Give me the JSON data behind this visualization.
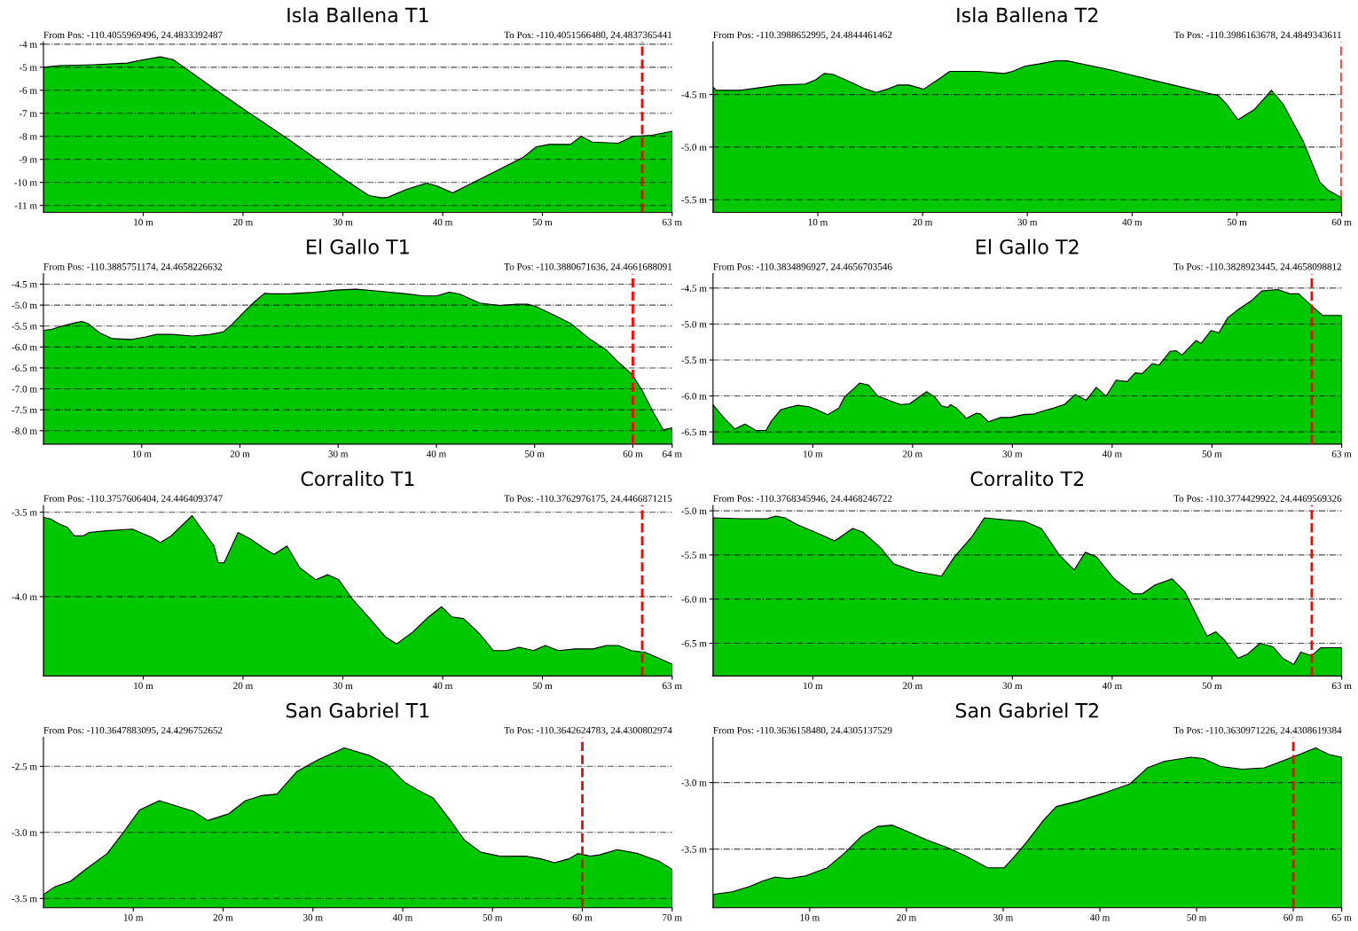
{
  "chart_data": [
    {
      "type": "area",
      "title": "Isla Ballena T1",
      "grid": "y",
      "annotations": [
        "From Pos: -110.4055969496, 24.4833392487",
        "To Pos: -110.4051566480, 24.4837365441"
      ],
      "x": [
        0,
        1.55,
        5,
        8.4,
        9.7,
        11.7,
        13,
        17.1,
        20.5,
        24.8,
        30,
        32.6,
        33.9,
        34.5,
        36.4,
        38.4,
        39.5,
        41,
        43.8,
        48.1,
        49.4,
        50.7,
        52.8,
        53.9,
        55,
        57.6,
        59.1,
        61,
        63
      ],
      "series": [
        {
          "color": "#00c800",
          "values": [
            -5.0,
            -4.93,
            -4.89,
            -4.82,
            -4.7,
            -4.55,
            -4.67,
            -5.93,
            -6.95,
            -8.2,
            -9.82,
            -10.57,
            -10.67,
            -10.65,
            -10.3,
            -10.03,
            -10.17,
            -10.45,
            -9.85,
            -8.9,
            -8.45,
            -8.35,
            -8.35,
            -8.0,
            -8.25,
            -8.3,
            -8.0,
            -7.95,
            -7.78
          ]
        }
      ],
      "xlim": [
        0,
        63
      ],
      "xticks": [
        {
          "value": 10,
          "label": "10 m"
        },
        {
          "value": 20,
          "label": "20 m"
        },
        {
          "value": 30,
          "label": "30 m"
        },
        {
          "value": 40,
          "label": "40 m"
        },
        {
          "value": 50,
          "label": "50 m"
        },
        {
          "value": 63,
          "label": "63 m"
        }
      ],
      "ylim": [
        -11.3,
        -3.9
      ],
      "yticks": [
        {
          "value": -4,
          "label": "-4 m"
        },
        {
          "value": -5,
          "label": "-5 m"
        },
        {
          "value": -6,
          "label": "-6 m"
        },
        {
          "value": -7,
          "label": "-7 m"
        },
        {
          "value": -8,
          "label": "-8 m"
        },
        {
          "value": -9,
          "label": "-9 m"
        },
        {
          "value": -10,
          "label": "-10 m"
        },
        {
          "value": -11,
          "label": "-11 m"
        }
      ],
      "ref_lines": [
        {
          "axis": "x",
          "value": 60,
          "color": "#ff0000",
          "line_style": "dashed"
        }
      ]
    },
    {
      "type": "area",
      "title": "Isla Ballena T2",
      "grid": "y",
      "annotations": [
        "From Pos: -110.3988652995, 24.4844461462",
        "To Pos: -110.3986163678, 24.4849343611"
      ],
      "x": [
        0,
        0.3,
        2.6,
        6.3,
        8.8,
        9.8,
        10.6,
        11.5,
        13.3,
        14.6,
        15.6,
        16.6,
        17.6,
        18.7,
        20.1,
        21.6,
        22.6,
        25.3,
        27.8,
        28.6,
        29.8,
        31.1,
        32.7,
        33.8,
        38.1,
        42.2,
        48.2,
        49,
        50.1,
        51.7,
        53.3,
        54.4,
        56.3,
        57.9,
        58.7,
        59.8,
        60
      ],
      "series": [
        {
          "color": "#00c800",
          "values": [
            -4.43,
            -4.46,
            -4.46,
            -4.41,
            -4.4,
            -4.36,
            -4.3,
            -4.31,
            -4.39,
            -4.45,
            -4.48,
            -4.45,
            -4.41,
            -4.41,
            -4.45,
            -4.35,
            -4.28,
            -4.28,
            -4.3,
            -4.28,
            -4.23,
            -4.21,
            -4.18,
            -4.18,
            -4.27,
            -4.37,
            -4.51,
            -4.59,
            -4.74,
            -4.64,
            -4.46,
            -4.59,
            -4.94,
            -5.33,
            -5.41,
            -5.47,
            -5.48
          ]
        }
      ],
      "xlim": [
        0,
        60
      ],
      "xticks": [
        {
          "value": 10,
          "label": "10 m"
        },
        {
          "value": 20,
          "label": "20 m"
        },
        {
          "value": 30,
          "label": "30 m"
        },
        {
          "value": 40,
          "label": "40 m"
        },
        {
          "value": 50,
          "label": "50 m"
        },
        {
          "value": 60,
          "label": "60 m"
        }
      ],
      "ylim": [
        -5.62,
        -4.0
      ],
      "yticks": [
        {
          "value": -4.5,
          "label": "-4.5 m"
        },
        {
          "value": -5.0,
          "label": "-5.0 m"
        },
        {
          "value": -5.5,
          "label": "-5.5 m"
        }
      ],
      "ref_lines": [
        {
          "axis": "x",
          "value": 60,
          "color": "#ff0000",
          "line_style": "dashed"
        }
      ]
    },
    {
      "type": "area",
      "title": "El Gallo T1",
      "grid": "y",
      "annotations": [
        "From Pos: -110.3885751174, 24.4658226632",
        "To Pos: -110.3880671636, 24.4661688091"
      ],
      "x": [
        0,
        0.8,
        1.9,
        3.1,
        3.9,
        4.6,
        5.7,
        7,
        9,
        10.4,
        11.5,
        13,
        15.2,
        17,
        18.3,
        19.2,
        20.3,
        21.4,
        22.5,
        23.2,
        25,
        27.2,
        29.8,
        31.8,
        33.8,
        36.9,
        38.7,
        40,
        41.3,
        42.4,
        44.4,
        46.4,
        48.2,
        49.3,
        50.2,
        52,
        53.7,
        55.5,
        57.3,
        58.6,
        59.9,
        61,
        62.1,
        63.1,
        64
      ],
      "series": [
        {
          "color": "#00c800",
          "values": [
            -5.6,
            -5.58,
            -5.5,
            -5.43,
            -5.39,
            -5.45,
            -5.66,
            -5.8,
            -5.82,
            -5.76,
            -5.7,
            -5.7,
            -5.74,
            -5.7,
            -5.64,
            -5.46,
            -5.19,
            -4.94,
            -4.72,
            -4.73,
            -4.73,
            -4.7,
            -4.64,
            -4.62,
            -4.66,
            -4.73,
            -4.78,
            -4.78,
            -4.69,
            -4.74,
            -4.95,
            -5.01,
            -4.98,
            -4.98,
            -5.04,
            -5.24,
            -5.44,
            -5.79,
            -6.07,
            -6.38,
            -6.65,
            -7.06,
            -7.57,
            -7.98,
            -7.93
          ]
        }
      ],
      "xlim": [
        0,
        64
      ],
      "xticks": [
        {
          "value": 10,
          "label": "10 m"
        },
        {
          "value": 20,
          "label": "20 m"
        },
        {
          "value": 30,
          "label": "30 m"
        },
        {
          "value": 40,
          "label": "40 m"
        },
        {
          "value": 50,
          "label": "50 m"
        },
        {
          "value": 60,
          "label": "60 m"
        },
        {
          "value": 64,
          "label": "64 m"
        }
      ],
      "ylim": [
        -8.32,
        -4.25
      ],
      "yticks": [
        {
          "value": -4.5,
          "label": "-4.5 m"
        },
        {
          "value": -5.0,
          "label": "-5.0 m"
        },
        {
          "value": -5.5,
          "label": "-5.5 m"
        },
        {
          "value": -6.0,
          "label": "-6.0 m"
        },
        {
          "value": -6.5,
          "label": "-6.5 m"
        },
        {
          "value": -7.0,
          "label": "-7.0 m"
        },
        {
          "value": -7.5,
          "label": "-7.5 m"
        },
        {
          "value": -8.0,
          "label": "-8.0 m"
        }
      ],
      "ref_lines": [
        {
          "axis": "x",
          "value": 60,
          "color": "#ff0000",
          "line_style": "dashed"
        }
      ]
    },
    {
      "type": "area",
      "title": "El Gallo T2",
      "grid": "y",
      "annotations": [
        "From Pos: -110.3834896927, 24.4656703546",
        "To Pos: -110.3828923445, 24.4658098812"
      ],
      "x": [
        0,
        0.95,
        2.2,
        3.2,
        4.3,
        5.3,
        5.9,
        6.8,
        7.6,
        8.5,
        9.6,
        10.4,
        11.5,
        12.6,
        13.2,
        14.1,
        14.7,
        15.6,
        16.5,
        17.8,
        18.8,
        19.7,
        20.8,
        21.4,
        22.2,
        22.9,
        23.5,
        23.8,
        24.4,
        25.4,
        26.4,
        26.8,
        27.6,
        28.8,
        29.8,
        31.1,
        32.2,
        33.3,
        34.1,
        35.2,
        35.6,
        36.3,
        37.4,
        38.4,
        39.4,
        40.4,
        41.5,
        42.3,
        43,
        44,
        44.7,
        45.8,
        46.4,
        47,
        47.7,
        48.4,
        48.9,
        49.9,
        50.7,
        51.6,
        52.7,
        54,
        55,
        56.6,
        57.8,
        58.7,
        60,
        61.1,
        63
      ],
      "series": [
        {
          "color": "#00c800",
          "values": [
            -6.12,
            -6.28,
            -6.46,
            -6.39,
            -6.48,
            -6.48,
            -6.34,
            -6.19,
            -6.16,
            -6.13,
            -6.15,
            -6.19,
            -6.26,
            -6.17,
            -6.01,
            -5.9,
            -5.82,
            -5.85,
            -6.0,
            -6.07,
            -6.12,
            -6.11,
            -6.0,
            -5.94,
            -6.01,
            -6.14,
            -6.16,
            -6.12,
            -6.17,
            -6.31,
            -6.24,
            -6.25,
            -6.36,
            -6.3,
            -6.3,
            -6.26,
            -6.25,
            -6.2,
            -6.17,
            -6.12,
            -6.07,
            -5.98,
            -6.06,
            -5.88,
            -6.0,
            -5.78,
            -5.8,
            -5.68,
            -5.69,
            -5.55,
            -5.57,
            -5.38,
            -5.37,
            -5.43,
            -5.33,
            -5.23,
            -5.27,
            -5.09,
            -5.12,
            -4.91,
            -4.79,
            -4.67,
            -4.54,
            -4.52,
            -4.58,
            -4.58,
            -4.75,
            -4.88,
            -4.88
          ]
        }
      ],
      "xlim": [
        0,
        63
      ],
      "xticks": [
        {
          "value": 10,
          "label": "10 m"
        },
        {
          "value": 20,
          "label": "20 m"
        },
        {
          "value": 30,
          "label": "30 m"
        },
        {
          "value": 40,
          "label": "40 m"
        },
        {
          "value": 50,
          "label": "50 m"
        },
        {
          "value": 63,
          "label": "63 m"
        }
      ],
      "ylim": [
        -6.67,
        -4.3
      ],
      "yticks": [
        {
          "value": -4.5,
          "label": "-4.5 m"
        },
        {
          "value": -5.0,
          "label": "-5.0 m"
        },
        {
          "value": -5.5,
          "label": "-5.5 m"
        },
        {
          "value": -6.0,
          "label": "-6.0 m"
        },
        {
          "value": -6.5,
          "label": "-6.5 m"
        }
      ],
      "ref_lines": [
        {
          "axis": "x",
          "value": 60,
          "color": "#ff0000",
          "line_style": "dashed"
        }
      ]
    },
    {
      "type": "area",
      "title": "Corralito T1",
      "grid": "y",
      "annotations": [
        "From Pos: -110.3757606404, 24.4464093747",
        "To Pos: -110.3762976175, 24.4466871215"
      ],
      "x": [
        0,
        0.7,
        1.6,
        2.4,
        3.1,
        4.0,
        4.6,
        6.3,
        8.9,
        10.1,
        10.9,
        11.7,
        12.8,
        14.9,
        16.1,
        17.1,
        17.5,
        18.1,
        19.5,
        20.8,
        22.0,
        23.1,
        24.4,
        25.7,
        27.3,
        28.5,
        29.6,
        30.9,
        32.7,
        34.3,
        35.4,
        37.0,
        38.6,
        39.9,
        40.9,
        42.1,
        43.7,
        45.1,
        46.4,
        47.7,
        49.1,
        50.3,
        51.6,
        53.3,
        55.1,
        56.4,
        57.6,
        58.9,
        60.3,
        61.5,
        63
      ],
      "series": [
        {
          "color": "#00c800",
          "values": [
            -3.53,
            -3.54,
            -3.57,
            -3.59,
            -3.64,
            -3.64,
            -3.62,
            -3.61,
            -3.6,
            -3.63,
            -3.65,
            -3.68,
            -3.64,
            -3.52,
            -3.62,
            -3.7,
            -3.8,
            -3.8,
            -3.62,
            -3.66,
            -3.71,
            -3.75,
            -3.7,
            -3.83,
            -3.9,
            -3.87,
            -3.9,
            -4.01,
            -4.13,
            -4.24,
            -4.28,
            -4.21,
            -4.12,
            -4.06,
            -4.12,
            -4.13,
            -4.22,
            -4.32,
            -4.32,
            -4.3,
            -4.32,
            -4.29,
            -4.32,
            -4.31,
            -4.31,
            -4.29,
            -4.29,
            -4.32,
            -4.33,
            -4.36,
            -4.4
          ]
        }
      ],
      "xlim": [
        0,
        63
      ],
      "xticks": [
        {
          "value": 10,
          "label": "10 m"
        },
        {
          "value": 20,
          "label": "20 m"
        },
        {
          "value": 30,
          "label": "30 m"
        },
        {
          "value": 40,
          "label": "40 m"
        },
        {
          "value": 50,
          "label": "50 m"
        },
        {
          "value": 63,
          "label": "63 m"
        }
      ],
      "ylim": [
        -4.47,
        -3.46
      ],
      "yticks": [
        {
          "value": -3.5,
          "label": "-3.5 m"
        },
        {
          "value": -4.0,
          "label": "-4.0 m"
        }
      ],
      "ref_lines": [
        {
          "axis": "x",
          "value": 60,
          "color": "#ff0000",
          "line_style": "dashed"
        }
      ]
    },
    {
      "type": "area",
      "title": "Corralito T2",
      "grid": "y",
      "annotations": [
        "From Pos: -110.3768345946, 24.4468246722",
        "To Pos: -110.3774429922, 24.4469569326"
      ],
      "x": [
        0,
        2.8,
        5.4,
        6.3,
        7.2,
        8.5,
        10.2,
        12.2,
        14,
        15,
        16.8,
        18.1,
        20.3,
        22.9,
        24.2,
        25.9,
        27.2,
        29,
        31.2,
        32.9,
        34.7,
        36.2,
        37.3,
        38.4,
        40.2,
        42.1,
        43,
        44.3,
        46,
        47.3,
        49.5,
        50.4,
        51.3,
        52.6,
        53.6,
        54.8,
        56.1,
        57.1,
        58.2,
        58.9,
        60,
        60.9,
        63
      ],
      "series": [
        {
          "color": "#00c800",
          "values": [
            -5.08,
            -5.09,
            -5.09,
            -5.06,
            -5.08,
            -5.16,
            -5.24,
            -5.34,
            -5.2,
            -5.24,
            -5.42,
            -5.6,
            -5.69,
            -5.74,
            -5.52,
            -5.3,
            -5.08,
            -5.1,
            -5.12,
            -5.2,
            -5.5,
            -5.67,
            -5.47,
            -5.52,
            -5.77,
            -5.94,
            -5.94,
            -5.84,
            -5.77,
            -5.92,
            -6.42,
            -6.37,
            -6.47,
            -6.67,
            -6.62,
            -6.5,
            -6.54,
            -6.67,
            -6.74,
            -6.6,
            -6.64,
            -6.55,
            -6.55
          ]
        }
      ],
      "xlim": [
        0,
        63
      ],
      "xticks": [
        {
          "value": 10,
          "label": "10 m"
        },
        {
          "value": 20,
          "label": "20 m"
        },
        {
          "value": 30,
          "label": "30 m"
        },
        {
          "value": 40,
          "label": "40 m"
        },
        {
          "value": 50,
          "label": "50 m"
        },
        {
          "value": 63,
          "label": "63 m"
        }
      ],
      "ylim": [
        -6.87,
        -4.94
      ],
      "yticks": [
        {
          "value": -5.0,
          "label": "-5.0 m"
        },
        {
          "value": -5.5,
          "label": "-5.5 m"
        },
        {
          "value": -6.0,
          "label": "-6.0 m"
        },
        {
          "value": -6.5,
          "label": "-6.5 m"
        }
      ],
      "ref_lines": [
        {
          "axis": "x",
          "value": 60,
          "color": "#ff0000",
          "line_style": "dashed"
        }
      ]
    },
    {
      "type": "area",
      "title": "San Gabriel T1",
      "grid": "y",
      "annotations": [
        "From Pos: -110.3647883095, 24.4296752652",
        "To Pos: -110.3642624783, 24.4300802974"
      ],
      "x": [
        0,
        1.3,
        3.0,
        4.7,
        7.1,
        9.0,
        10.7,
        12.9,
        14.8,
        16.7,
        18.3,
        20.6,
        22.5,
        24.4,
        26,
        28.2,
        30.6,
        33.5,
        36.4,
        38.3,
        40.2,
        41.7,
        43.4,
        45.1,
        46.9,
        48.7,
        50.8,
        53.7,
        55.4,
        56.9,
        58.5,
        59.5,
        60.9,
        61.9,
        63.9,
        66.2,
        68.6,
        70
      ],
      "series": [
        {
          "color": "#00c800",
          "values": [
            -3.47,
            -3.41,
            -3.37,
            -3.28,
            -3.16,
            -2.99,
            -2.83,
            -2.76,
            -2.8,
            -2.84,
            -2.91,
            -2.86,
            -2.76,
            -2.72,
            -2.71,
            -2.54,
            -2.45,
            -2.36,
            -2.42,
            -2.49,
            -2.62,
            -2.68,
            -2.74,
            -2.89,
            -3.06,
            -3.15,
            -3.18,
            -3.18,
            -3.2,
            -3.23,
            -3.2,
            -3.16,
            -3.18,
            -3.17,
            -3.13,
            -3.16,
            -3.22,
            -3.28
          ]
        }
      ],
      "xlim": [
        0,
        70
      ],
      "xticks": [
        {
          "value": 10,
          "label": "10 m"
        },
        {
          "value": 20,
          "label": "20 m"
        },
        {
          "value": 30,
          "label": "30 m"
        },
        {
          "value": 40,
          "label": "40 m"
        },
        {
          "value": 50,
          "label": "50 m"
        },
        {
          "value": 60,
          "label": "60 m"
        },
        {
          "value": 70,
          "label": "70 m"
        }
      ],
      "ylim": [
        -3.57,
        -2.28
      ],
      "yticks": [
        {
          "value": -2.5,
          "label": "-2.5 m"
        },
        {
          "value": -3.0,
          "label": "-3.0 m"
        },
        {
          "value": -3.5,
          "label": "-3.5 m"
        }
      ],
      "ref_lines": [
        {
          "axis": "x",
          "value": 60,
          "color": "#ff0000",
          "line_style": "dashed"
        }
      ]
    },
    {
      "type": "area",
      "title": "San Gabriel T2",
      "grid": "y",
      "annotations": [
        "From Pos: -110.3636158480, 24.4305137529",
        "To Pos: -110.3630971226, 24.4308619384"
      ],
      "x": [
        0,
        2.0,
        3.8,
        5.1,
        6.4,
        7.8,
        9.6,
        11.8,
        13.6,
        15.4,
        17,
        18.5,
        19.9,
        22.1,
        24.3,
        26.1,
        28.4,
        30.1,
        31,
        32.4,
        34.2,
        35.5,
        37.7,
        40.4,
        43.1,
        44.9,
        46.7,
        49.4,
        50.7,
        52.5,
        54.7,
        57,
        58.8,
        60.6,
        62.3,
        63.7,
        65
      ],
      "series": [
        {
          "color": "#00c800",
          "values": [
            -3.84,
            -3.82,
            -3.78,
            -3.74,
            -3.71,
            -3.72,
            -3.7,
            -3.64,
            -3.53,
            -3.4,
            -3.33,
            -3.32,
            -3.36,
            -3.43,
            -3.49,
            -3.55,
            -3.64,
            -3.64,
            -3.57,
            -3.45,
            -3.28,
            -3.18,
            -3.14,
            -3.08,
            -3.01,
            -2.89,
            -2.84,
            -2.81,
            -2.82,
            -2.88,
            -2.9,
            -2.89,
            -2.84,
            -2.79,
            -2.74,
            -2.79,
            -2.81
          ]
        }
      ],
      "xlim": [
        0,
        65
      ],
      "xticks": [
        {
          "value": 10,
          "label": "10 m"
        },
        {
          "value": 20,
          "label": "20 m"
        },
        {
          "value": 30,
          "label": "30 m"
        },
        {
          "value": 40,
          "label": "40 m"
        },
        {
          "value": 50,
          "label": "50 m"
        },
        {
          "value": 60,
          "label": "60 m"
        },
        {
          "value": 65,
          "label": "65 m"
        }
      ],
      "ylim": [
        -3.94,
        -2.66
      ],
      "yticks": [
        {
          "value": -3.0,
          "label": "-3.0 m"
        },
        {
          "value": -3.5,
          "label": "-3.5 m"
        }
      ],
      "ref_lines": [
        {
          "axis": "x",
          "value": 60,
          "color": "#ff0000",
          "line_style": "dashed"
        }
      ]
    }
  ]
}
